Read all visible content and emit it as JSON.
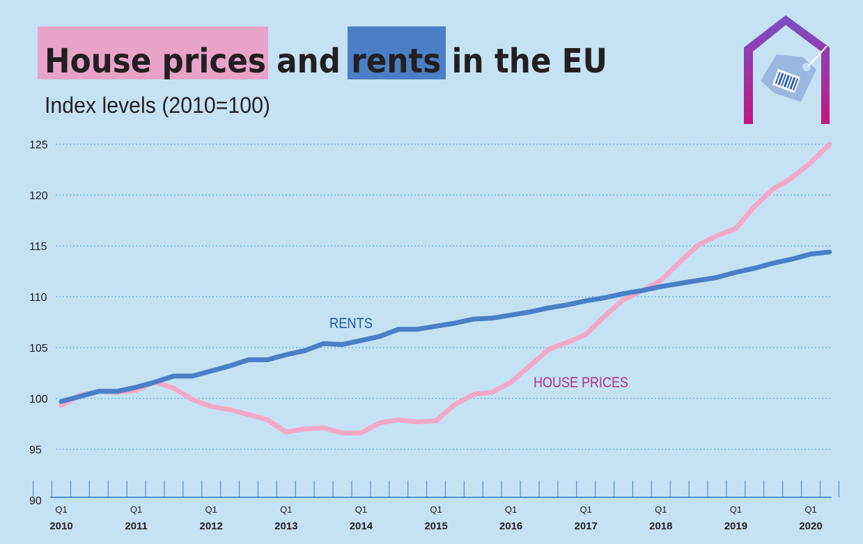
{
  "title": {
    "part1": "House prices",
    "part2": " and ",
    "part3": "rents",
    "part4": " in the EU"
  },
  "colors": {
    "background": "#c5e2f4",
    "house_prices": "#f4a8c8",
    "rents": "#4a7fc6",
    "title_highlight_pink": "#e8a3c8",
    "title_highlight_blue": "#4a7fc6",
    "rents_label": "#1e5aa8",
    "house_prices_label": "#b12f87",
    "gridline": "#3aa8dd",
    "axis": "#4a8fd0"
  },
  "logo": {
    "icon": "house-price-tag-icon"
  },
  "chart_data": {
    "type": "line",
    "subtitle": "Index levels (2010=100)",
    "ylim": [
      90,
      125
    ],
    "yticks": [
      90,
      95,
      100,
      105,
      110,
      115,
      120,
      125
    ],
    "grid": true,
    "x_start": "2010 Q1",
    "x_end": "2020 Q2",
    "xtick_years": [
      "2010",
      "2011",
      "2012",
      "2013",
      "2014",
      "2015",
      "2016",
      "2017",
      "2018",
      "2019",
      "2020"
    ],
    "xtick_quarter_label": "Q1",
    "x": [
      "2010 Q1",
      "2010 Q2",
      "2010 Q3",
      "2010 Q4",
      "2011 Q1",
      "2011 Q2",
      "2011 Q3",
      "2011 Q4",
      "2012 Q1",
      "2012 Q2",
      "2012 Q3",
      "2012 Q4",
      "2013 Q1",
      "2013 Q2",
      "2013 Q3",
      "2013 Q4",
      "2014 Q1",
      "2014 Q2",
      "2014 Q3",
      "2014 Q4",
      "2015 Q1",
      "2015 Q2",
      "2015 Q3",
      "2015 Q4",
      "2016 Q1",
      "2016 Q2",
      "2016 Q3",
      "2016 Q4",
      "2017 Q1",
      "2017 Q2",
      "2017 Q3",
      "2017 Q4",
      "2018 Q1",
      "2018 Q2",
      "2018 Q3",
      "2018 Q4",
      "2019 Q1",
      "2019 Q2",
      "2019 Q3",
      "2019 Q4",
      "2020 Q1",
      "2020 Q2"
    ],
    "series": [
      {
        "name": "RENTS",
        "values": [
          99.7,
          100.2,
          100.7,
          100.7,
          101.1,
          101.6,
          102.2,
          102.2,
          102.7,
          103.2,
          103.8,
          103.8,
          104.3,
          104.7,
          105.4,
          105.3,
          105.7,
          106.1,
          106.8,
          106.8,
          107.1,
          107.4,
          107.8,
          107.9,
          108.2,
          108.5,
          108.9,
          109.2,
          109.6,
          109.9,
          110.3,
          110.6,
          111.0,
          111.3,
          111.6,
          111.9,
          112.4,
          112.8,
          113.3,
          113.7,
          114.2,
          114.4
        ]
      },
      {
        "name": "HOUSE PRICES",
        "values": [
          99.3,
          100.3,
          100.7,
          100.6,
          100.8,
          101.6,
          101.0,
          99.9,
          99.2,
          98.9,
          98.4,
          97.9,
          96.7,
          97.0,
          97.1,
          96.6,
          96.6,
          97.6,
          97.9,
          97.7,
          97.8,
          99.4,
          100.4,
          100.6,
          101.6,
          103.2,
          104.8,
          105.5,
          106.3,
          108.1,
          109.7,
          110.6,
          111.6,
          113.4,
          115.1,
          116.0,
          116.7,
          118.9,
          120.6,
          121.7,
          123.2,
          125.0
        ]
      }
    ]
  }
}
